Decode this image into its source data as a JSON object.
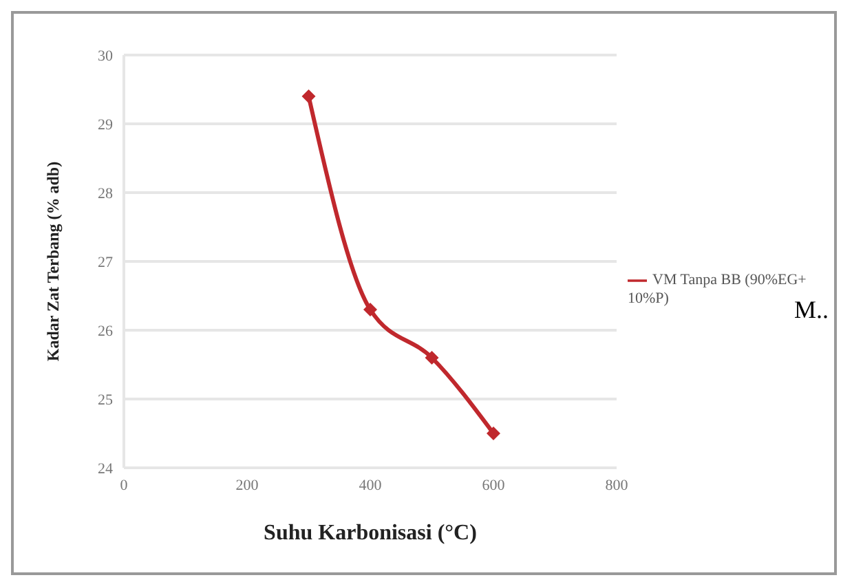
{
  "chart_data": {
    "type": "line",
    "xlabel": "Suhu Karbonisasi (°C)",
    "ylabel": "Kadar Zat Terbang (% adb)",
    "x": [
      300,
      400,
      500,
      600
    ],
    "series": [
      {
        "name": "VM Tanpa BB (90%EG+ 10%P)",
        "color": "#c0282d",
        "values": [
          29.4,
          26.3,
          25.6,
          24.5
        ]
      }
    ],
    "xlim": [
      0,
      800
    ],
    "xticks": [
      0,
      200,
      400,
      600,
      800
    ],
    "ylim": [
      24,
      30
    ],
    "yticks": [
      24,
      25,
      26,
      27,
      28,
      29,
      30
    ],
    "grid": "y",
    "legend": "right",
    "marker": "diamond",
    "line_style": "solid",
    "annotations": [
      "M.."
    ]
  }
}
